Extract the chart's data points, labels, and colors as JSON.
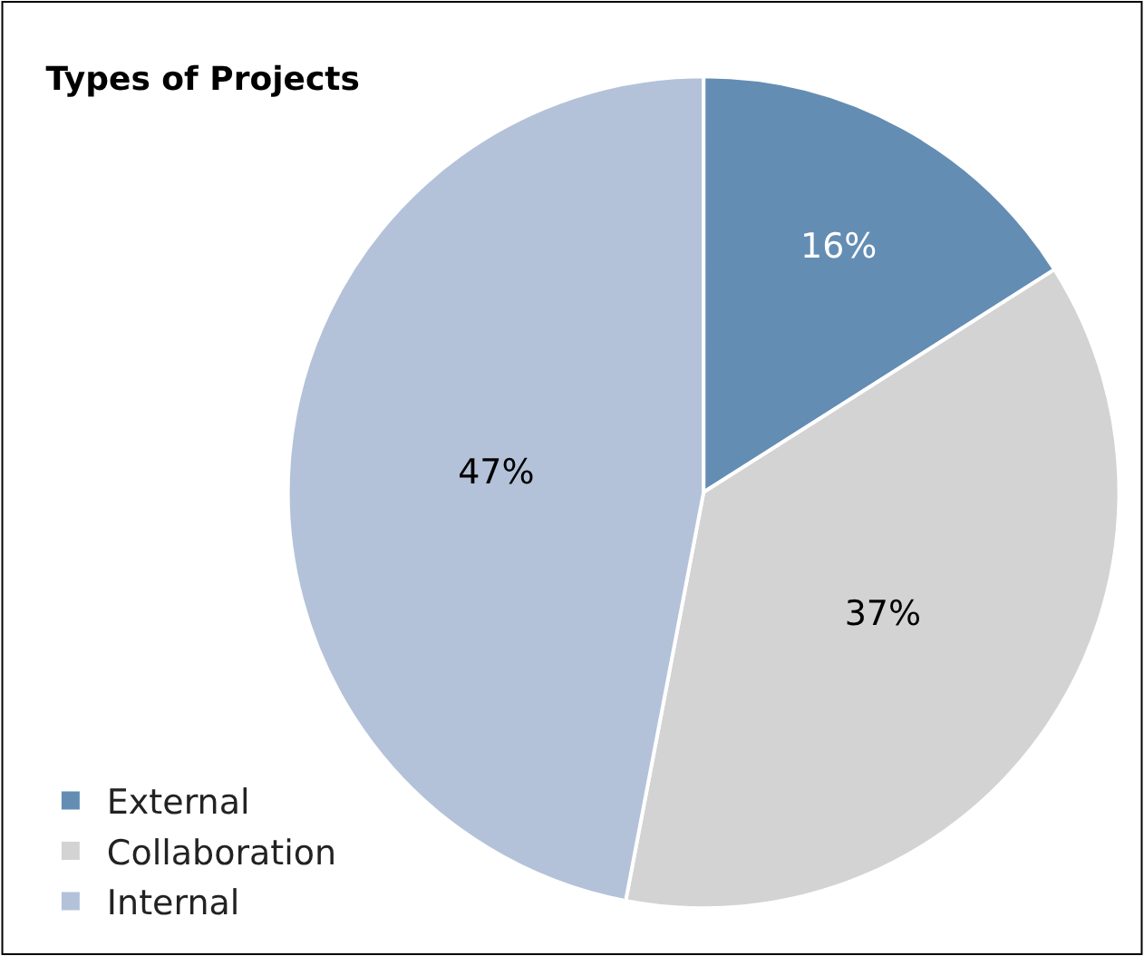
{
  "chart_data": {
    "type": "pie",
    "title": "Types of Projects",
    "categories": [
      "External",
      "Collaboration",
      "Internal"
    ],
    "values": [
      16,
      37,
      47
    ],
    "value_labels": [
      "16%",
      "37%",
      "47%"
    ],
    "colors": [
      "#648db3",
      "#d3d3d3",
      "#b3c2d9"
    ],
    "legend": "bottom left"
  }
}
